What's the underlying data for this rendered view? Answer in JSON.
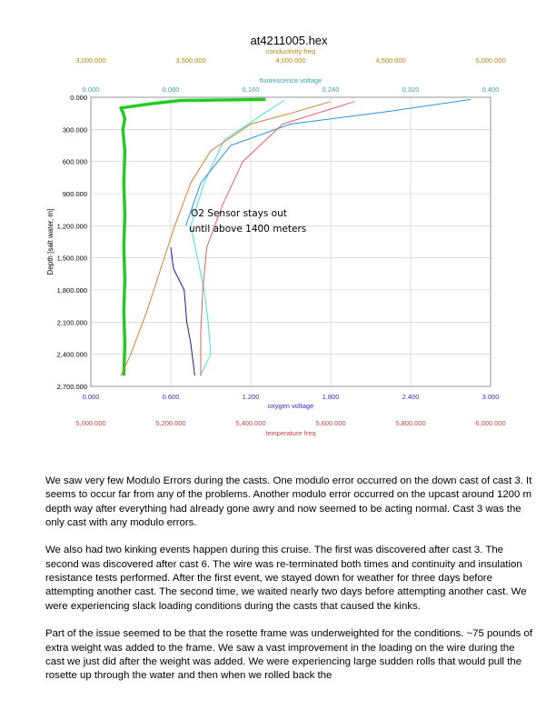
{
  "chart_data": {
    "type": "line",
    "title": "at4211005.hex",
    "top_axes": [
      {
        "label": "conductivity freq",
        "color": "#b8860b",
        "range": [
          3000000,
          5000000
        ],
        "ticks": [
          "3,000.000",
          "3,500.000",
          "4,000.000",
          "4,500.000",
          "5,000.000"
        ]
      },
      {
        "label": "fluorescence voltage",
        "color": "#3aa0b0",
        "range": [
          0,
          0.4
        ],
        "ticks": [
          "0.000",
          "0.080",
          "0.160",
          "0.240",
          "0.320",
          "0.400"
        ]
      }
    ],
    "bottom_axes": [
      {
        "label": "oxygen voltage",
        "color": "#3030c0",
        "range": [
          0,
          3
        ],
        "ticks": [
          "0.000",
          "0.600",
          "1.200",
          "1.800",
          "2.400",
          "3.000"
        ]
      },
      {
        "label": "temperature freq",
        "color": "#d04040",
        "range": [
          5000000,
          6000000
        ],
        "ticks": [
          "5,000.000",
          "5,200.000",
          "5,400.000",
          "5,600.000",
          "5,800.000",
          "6,000.000"
        ]
      }
    ],
    "y_axis": {
      "label": "Depth [salt water, m]",
      "range": [
        0,
        2700
      ],
      "ticks": [
        "0.000",
        "300.000",
        "600.000",
        "900.000",
        "1,200.000",
        "1,500.000",
        "1,800.000",
        "2,100.000",
        "2,400.000",
        "2,700.000"
      ]
    },
    "grid": true,
    "annotation": [
      "O2 Sensor stays out",
      "until above 1400 meters"
    ],
    "series": [
      {
        "color": "#22cc22",
        "axis": "fluorescence",
        "points": [
          [
            0.175,
            20
          ],
          [
            0.09,
            30
          ],
          [
            0.06,
            60
          ],
          [
            0.03,
            100
          ],
          [
            0.032,
            140
          ],
          [
            0.034,
            200
          ],
          [
            0.032,
            300
          ],
          [
            0.034,
            500
          ],
          [
            0.033,
            800
          ],
          [
            0.034,
            1100
          ],
          [
            0.033,
            1400
          ],
          [
            0.034,
            1700
          ],
          [
            0.033,
            2000
          ],
          [
            0.034,
            2300
          ],
          [
            0.033,
            2600
          ]
        ]
      },
      {
        "color": "#40e0e0",
        "axis": "oxygen",
        "points": [
          [
            1.45,
            30
          ],
          [
            1.3,
            150
          ],
          [
            1.0,
            400
          ],
          [
            0.85,
            800
          ],
          [
            0.75,
            1200
          ],
          [
            0.8,
            1500
          ],
          [
            0.85,
            1800
          ],
          [
            0.88,
            2100
          ],
          [
            0.9,
            2400
          ],
          [
            0.82,
            2600
          ]
        ]
      },
      {
        "color": "#1a1aa0",
        "axis": "oxygen",
        "points": [
          [
            0.6,
            1400
          ],
          [
            0.62,
            1600
          ],
          [
            0.7,
            1800
          ],
          [
            0.72,
            2100
          ],
          [
            0.75,
            2300
          ],
          [
            0.78,
            2600
          ]
        ]
      },
      {
        "color": "#d08030",
        "axis": "conductivity",
        "points": [
          [
            4200000,
            40
          ],
          [
            4000000,
            150
          ],
          [
            3800000,
            250
          ],
          [
            3600000,
            500
          ],
          [
            3500000,
            800
          ],
          [
            3420000,
            1200
          ],
          [
            3350000,
            1600
          ],
          [
            3280000,
            2000
          ],
          [
            3200000,
            2400
          ],
          [
            3150000,
            2600
          ]
        ]
      },
      {
        "color": "#3090e0",
        "axis": "fluorescence",
        "points": [
          [
            0.38,
            20
          ],
          [
            0.3,
            130
          ],
          [
            0.2,
            250
          ],
          [
            0.14,
            450
          ],
          [
            0.11,
            800
          ],
          [
            0.095,
            1200
          ]
        ]
      },
      {
        "color": "#e06060",
        "axis": "temperature",
        "points": [
          [
            5660000,
            40
          ],
          [
            5480000,
            250
          ],
          [
            5380000,
            600
          ],
          [
            5330000,
            1000
          ],
          [
            5290000,
            1400
          ],
          [
            5280000,
            1800
          ],
          [
            5275000,
            2200
          ],
          [
            5275000,
            2600
          ]
        ]
      }
    ]
  },
  "paragraphs": [
    "We saw very few Modulo Errors during the casts.  One modulo error occurred on the down cast of cast 3. It seems to occur far from any of the problems.  Another modulo error occurred on the upcast around 1200 m depth way after everything had already gone awry and now seemed to be acting normal.  Cast 3 was the only cast with any modulo errors.",
    "We also had two kinking events happen during this cruise.  The first was discovered after cast 3. The second was discovered after cast 6.  The wire was re-terminated both times and continuity and insulation resistance tests performed.  After the first event, we stayed down for weather for three days before attempting another cast.  The second time, we waited nearly two days before attempting another cast.  We were experiencing slack loading conditions during the casts that caused the kinks.",
    "Part of the issue seemed to be that the rosette frame was underweighted for the conditions. ~75 pounds of extra weight was added to the frame.  We saw a vast improvement in the loading on the wire during the cast we just did after the weight was added.  We were experiencing large sudden rolls that would pull the rosette up through the water and then when we rolled back the"
  ]
}
